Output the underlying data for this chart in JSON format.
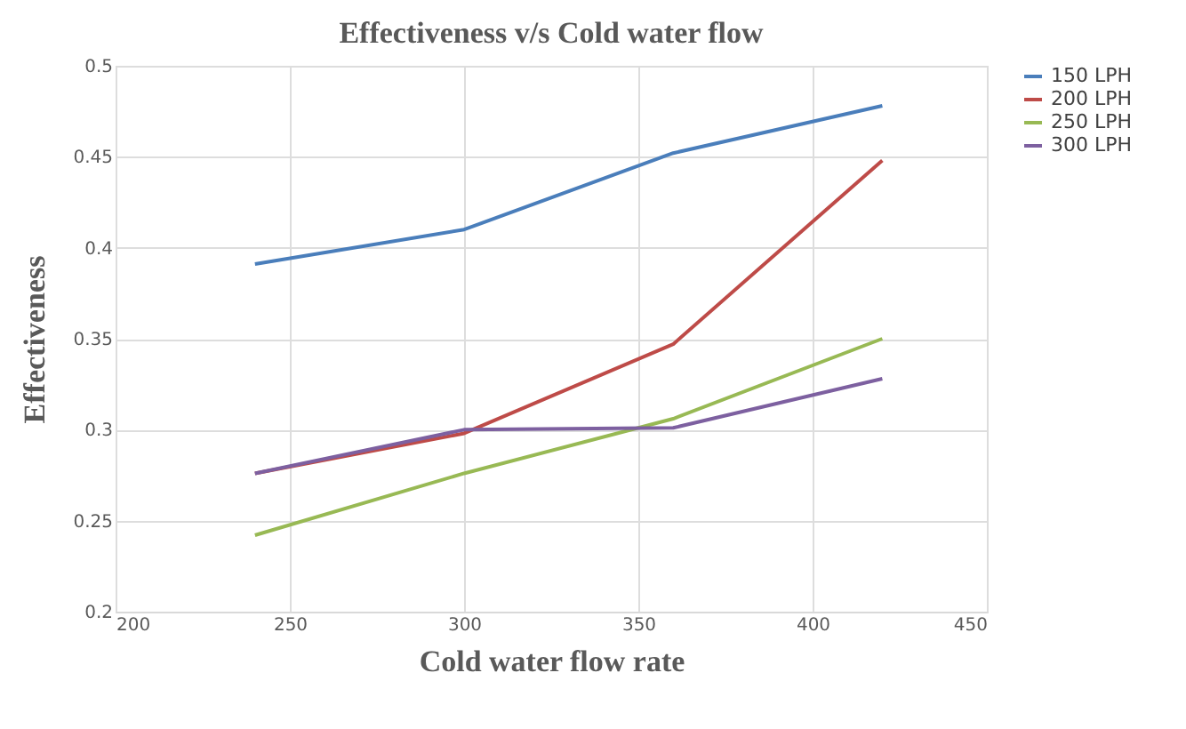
{
  "chart_data": {
    "type": "line",
    "title": "Effectiveness v/s Cold water flow",
    "xlabel": "Cold water flow rate",
    "ylabel": "Effectiveness",
    "x": [
      240,
      300,
      360,
      420
    ],
    "series": [
      {
        "name": "150 LPH",
        "color": "#4a7ebb",
        "values": [
          0.391,
          0.41,
          0.452,
          0.478
        ]
      },
      {
        "name": "200 LPH",
        "color": "#be4b48",
        "values": [
          0.276,
          0.298,
          0.347,
          0.448
        ]
      },
      {
        "name": "250 LPH",
        "color": "#98b954",
        "values": [
          0.242,
          0.276,
          0.306,
          0.35
        ]
      },
      {
        "name": "300 LPH",
        "color": "#7d60a0",
        "values": [
          0.276,
          0.3,
          0.301,
          0.328
        ]
      }
    ],
    "xlim": [
      200,
      450
    ],
    "xticks": [
      200,
      250,
      300,
      350,
      400,
      450
    ],
    "ylim": [
      0.2,
      0.5
    ],
    "yticks": [
      0.2,
      0.25,
      0.3,
      0.35,
      0.4,
      0.45,
      0.5
    ],
    "grid": true,
    "legend": "right",
    "marker": "none",
    "line_style": "solid"
  }
}
